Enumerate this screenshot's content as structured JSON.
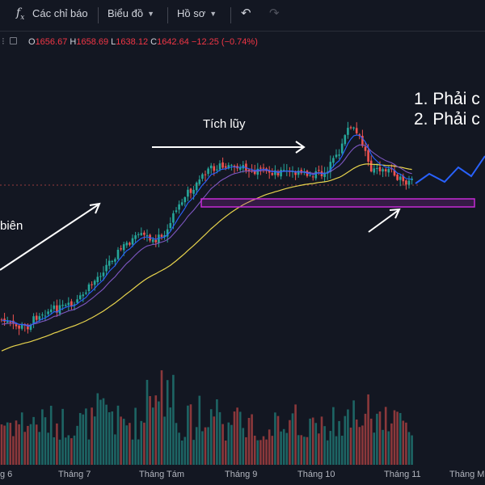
{
  "toolbar": {
    "indicators_label": "Các chỉ báo",
    "chart_label": "Biểu đồ",
    "profile_label": "Hồ sơ",
    "icons": [
      "fx-icon",
      "chevron-down-icon",
      "undo-icon",
      "redo-icon"
    ]
  },
  "ohlc": {
    "o_key": "O",
    "o_val": "1656.67",
    "h_key": "H",
    "h_val": "1658.69",
    "l_key": "L",
    "l_val": "1638.12",
    "c_key": "C",
    "c_val": "1642.64",
    "change": "−12.25 (−0.74%)"
  },
  "annotations": {
    "accumulation": "Tích lũy",
    "trend_partial": "biên",
    "note_1": "1. Phải c",
    "note_2": "2. Phải c"
  },
  "colors": {
    "background": "#131722",
    "up": "#26a69a",
    "down": "#ef5350",
    "ma_fast": "#2962ff",
    "ma_mid": "#7e57c2",
    "ma_slow": "#e8d44d",
    "zone": "#9c27b0",
    "projection": "#2962ff",
    "annotation": "#ffffff"
  },
  "chart_data": {
    "type": "candlestick",
    "x_axis_labels": [
      "g 6",
      "Tháng 7",
      "Tháng Tám",
      "Tháng 9",
      "Tháng 10",
      "Tháng 11",
      "Tháng Mười"
    ],
    "last_bar": {
      "open": 1656.67,
      "high": 1658.69,
      "low": 1638.12,
      "close": 1642.64,
      "change": -12.25,
      "change_pct": -0.74
    }
  }
}
